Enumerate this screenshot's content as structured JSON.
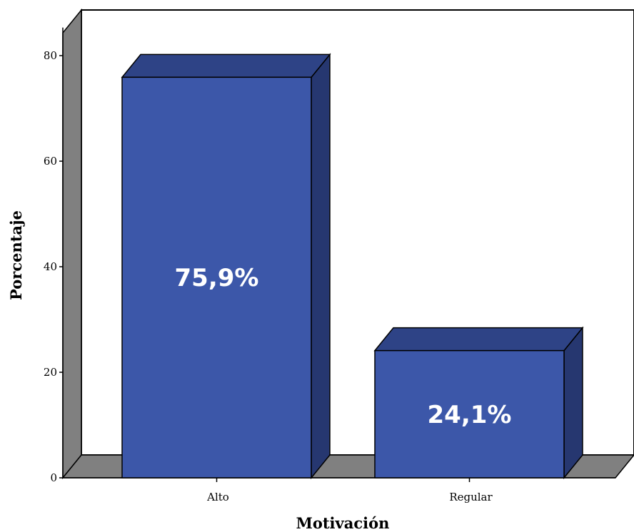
{
  "chart_data": {
    "type": "bar",
    "categories": [
      "Alto",
      "Regular"
    ],
    "values": [
      75.9,
      24.1
    ],
    "data_labels": [
      "75,9%",
      "24,1%"
    ],
    "xlabel": "Motivación",
    "ylabel": "Porcentaje",
    "ylim": [
      0,
      86
    ],
    "yticks": [
      0,
      20,
      40,
      60,
      80
    ],
    "grid": false,
    "legend": "none",
    "style": "3d",
    "colors": {
      "bar_front": "#3C57A9",
      "bar_top": "#2E4386",
      "bar_side": "#263770",
      "wall": "#ffffff",
      "wall_side": "#808080",
      "floor": "#808080"
    }
  }
}
